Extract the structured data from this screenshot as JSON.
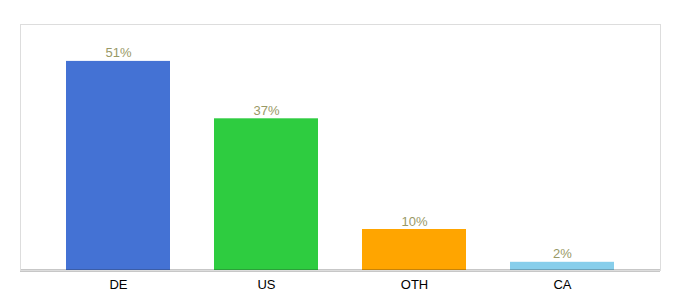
{
  "chart_data": {
    "type": "bar",
    "categories": [
      "DE",
      "US",
      "OTH",
      "CA"
    ],
    "values": [
      51,
      37,
      10,
      2
    ],
    "value_labels": [
      "51%",
      "37%",
      "10%",
      "2%"
    ],
    "colors": [
      "#4472D4",
      "#2ECC40",
      "#FFA500",
      "#87CEEB"
    ],
    "ylim": [
      0,
      60
    ],
    "data_labels": true,
    "tick_labels": "x"
  }
}
